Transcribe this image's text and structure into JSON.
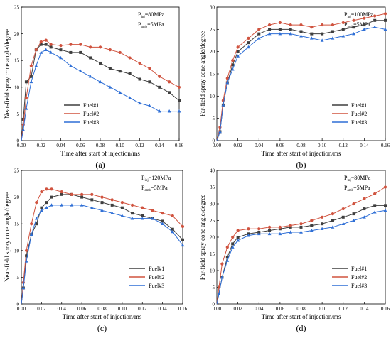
{
  "colors": {
    "fuel1": "#3f3f3f",
    "fuel2": "#d0533f",
    "fuel3": "#2f6fd6"
  },
  "chart_data": [
    {
      "type": "scatter",
      "panel_label": "(a)",
      "title": "",
      "xlabel": "Time after start of injection/ms",
      "ylabel": "Near-field spray cone angle/degree",
      "xlim": [
        0,
        0.16
      ],
      "ylim": [
        0,
        25
      ],
      "xticks": [
        "0.00",
        "0.02",
        "0.04",
        "0.06",
        "0.08",
        "0.10",
        "0.12",
        "0.14",
        "0.16"
      ],
      "yticks": [
        "0",
        "5",
        "10",
        "15",
        "20",
        "25"
      ],
      "conditions": [
        {
          "main": "P",
          "sub": "inj",
          "rest": "=80MPa"
        },
        {
          "main": "P",
          "sub": "amb",
          "rest": "=5MPa"
        }
      ],
      "legend": [
        "Fuel#1",
        "Fuel#2",
        "Fuel#3"
      ],
      "legend_position": "bottom-left",
      "series": [
        {
          "name": "Fuel#1",
          "marker": "square",
          "x": [
            0.002,
            0.005,
            0.01,
            0.015,
            0.02,
            0.025,
            0.03,
            0.04,
            0.05,
            0.06,
            0.07,
            0.08,
            0.09,
            0.1,
            0.11,
            0.12,
            0.13,
            0.14,
            0.15,
            0.16
          ],
          "y": [
            4,
            11,
            12,
            17,
            18,
            18,
            17.5,
            17,
            16.5,
            16.5,
            15.5,
            14.5,
            13.5,
            13,
            12.5,
            11.5,
            11,
            10,
            9,
            7.5
          ]
        },
        {
          "name": "Fuel#2",
          "marker": "circle",
          "x": [
            0.002,
            0.005,
            0.01,
            0.015,
            0.02,
            0.025,
            0.03,
            0.04,
            0.05,
            0.06,
            0.07,
            0.08,
            0.09,
            0.1,
            0.11,
            0.12,
            0.13,
            0.14,
            0.15,
            0.16
          ],
          "y": [
            3,
            8,
            14,
            17,
            18.5,
            18.8,
            18,
            17.8,
            18,
            18,
            17.5,
            17.5,
            17,
            16.5,
            15.5,
            14.5,
            13.5,
            12,
            11,
            10
          ]
        },
        {
          "name": "Fuel#3",
          "marker": "triangle",
          "x": [
            0.002,
            0.005,
            0.01,
            0.015,
            0.02,
            0.025,
            0.03,
            0.04,
            0.05,
            0.06,
            0.07,
            0.08,
            0.09,
            0.1,
            0.11,
            0.12,
            0.13,
            0.14,
            0.15,
            0.16
          ],
          "y": [
            2,
            6,
            11,
            14,
            16.5,
            17,
            16.5,
            15.5,
            14,
            13,
            12,
            11,
            10,
            9,
            8,
            7,
            6.5,
            5.5,
            5.5,
            5.5
          ]
        }
      ]
    },
    {
      "type": "scatter",
      "panel_label": "(b)",
      "title": "",
      "xlabel": "Time after start of injection/ms",
      "ylabel": "Far-field spray cone angle/degree",
      "xlim": [
        0,
        0.16
      ],
      "ylim": [
        0,
        30
      ],
      "xticks": [
        "0.00",
        "0.02",
        "0.04",
        "0.06",
        "0.08",
        "0.10",
        "0.12",
        "0.14",
        "0.16"
      ],
      "yticks": [
        "0",
        "5",
        "10",
        "15",
        "20",
        "25",
        "30"
      ],
      "conditions": [
        {
          "main": "P",
          "sub": "inj",
          "rest": "=100MPa"
        },
        {
          "main": "P",
          "sub": "amb",
          "rest": "=5MPa"
        }
      ],
      "legend": [
        "Fuel#1",
        "Fuel#2",
        "Fuel#3"
      ],
      "legend_position": "bottom-right",
      "series": [
        {
          "name": "Fuel#1",
          "marker": "square",
          "x": [
            0.003,
            0.006,
            0.01,
            0.015,
            0.02,
            0.03,
            0.04,
            0.05,
            0.06,
            0.07,
            0.08,
            0.09,
            0.1,
            0.11,
            0.12,
            0.13,
            0.14,
            0.15,
            0.16
          ],
          "y": [
            2,
            8,
            13,
            17,
            20,
            22,
            24,
            25,
            25,
            25,
            24.5,
            24,
            24,
            24.5,
            25,
            25.5,
            26,
            27,
            27
          ]
        },
        {
          "name": "Fuel#2",
          "marker": "circle",
          "x": [
            0.003,
            0.006,
            0.01,
            0.015,
            0.02,
            0.03,
            0.04,
            0.05,
            0.06,
            0.07,
            0.08,
            0.09,
            0.1,
            0.11,
            0.12,
            0.13,
            0.14,
            0.15,
            0.16
          ],
          "y": [
            3,
            9,
            14,
            18,
            21,
            23,
            25,
            26,
            26.5,
            26,
            26,
            25.5,
            26,
            26,
            26.5,
            27,
            27.5,
            28,
            28.5
          ]
        },
        {
          "name": "Fuel#3",
          "marker": "triangle",
          "x": [
            0.003,
            0.006,
            0.01,
            0.015,
            0.02,
            0.03,
            0.04,
            0.05,
            0.06,
            0.07,
            0.08,
            0.09,
            0.1,
            0.11,
            0.12,
            0.13,
            0.14,
            0.15,
            0.16
          ],
          "y": [
            2,
            8,
            13,
            16,
            19,
            21,
            23,
            24,
            24,
            24,
            23.5,
            23,
            22.5,
            23,
            23.5,
            24,
            25,
            25.5,
            25
          ]
        }
      ]
    },
    {
      "type": "scatter",
      "panel_label": "(c)",
      "title": "",
      "xlabel": "Time after start of injection/ms",
      "ylabel": "Near-field spray cone angle/degree",
      "xlim": [
        0,
        0.16
      ],
      "ylim": [
        0,
        25
      ],
      "xticks": [
        "0.00",
        "0.02",
        "0.04",
        "0.06",
        "0.08",
        "0.10",
        "0.12",
        "0.14",
        "0.16"
      ],
      "yticks": [
        "0",
        "5",
        "10",
        "15",
        "20",
        "25"
      ],
      "conditions": [
        {
          "main": "P",
          "sub": "inj",
          "rest": "=120MPa"
        },
        {
          "main": "P",
          "sub": "amb",
          "rest": "=5MPa"
        }
      ],
      "legend": [
        "Fuel#1",
        "Fuel#2",
        "Fuel#3"
      ],
      "legend_position": "bottom-right",
      "series": [
        {
          "name": "Fuel#1",
          "marker": "square",
          "x": [
            0.002,
            0.005,
            0.01,
            0.015,
            0.02,
            0.025,
            0.03,
            0.04,
            0.05,
            0.06,
            0.07,
            0.08,
            0.09,
            0.1,
            0.11,
            0.12,
            0.13,
            0.14,
            0.15,
            0.16
          ],
          "y": [
            3,
            9,
            13,
            15,
            18,
            19,
            20,
            20.5,
            20.5,
            20,
            19.5,
            19,
            18.5,
            18,
            17,
            16.5,
            16,
            15.5,
            14,
            12
          ]
        },
        {
          "name": "Fuel#2",
          "marker": "circle",
          "x": [
            0.002,
            0.005,
            0.01,
            0.015,
            0.02,
            0.025,
            0.03,
            0.04,
            0.05,
            0.06,
            0.07,
            0.08,
            0.09,
            0.1,
            0.11,
            0.12,
            0.13,
            0.14,
            0.15,
            0.16
          ],
          "y": [
            4,
            10,
            15,
            19,
            21,
            21.5,
            21.5,
            21,
            20.5,
            20.5,
            20.5,
            20,
            19.5,
            19,
            18.5,
            18,
            17.5,
            17,
            16.5,
            14.5
          ]
        },
        {
          "name": "Fuel#3",
          "marker": "triangle",
          "x": [
            0.002,
            0.005,
            0.01,
            0.015,
            0.02,
            0.025,
            0.03,
            0.04,
            0.05,
            0.06,
            0.07,
            0.08,
            0.09,
            0.1,
            0.11,
            0.12,
            0.13,
            0.14,
            0.15,
            0.16
          ],
          "y": [
            3,
            8,
            13,
            16,
            17.5,
            18,
            18.5,
            18.5,
            18.5,
            18.5,
            18,
            17.5,
            17,
            16.5,
            16,
            16,
            16,
            15,
            13.5,
            11
          ]
        }
      ]
    },
    {
      "type": "scatter",
      "panel_label": "(d)",
      "title": "",
      "xlabel": "Time after start of injection/ms",
      "ylabel": "Far-field spray cone angle/degree",
      "xlim": [
        0,
        0.16
      ],
      "ylim": [
        0,
        40
      ],
      "xticks": [
        "0.00",
        "0.02",
        "0.04",
        "0.06",
        "0.08",
        "0.10",
        "0.12",
        "0.14",
        "0.16"
      ],
      "yticks": [
        "0",
        "5",
        "10",
        "15",
        "20",
        "25",
        "30",
        "35",
        "40"
      ],
      "conditions": [
        {
          "main": "P",
          "sub": "inj",
          "rest": "=80MPa"
        },
        {
          "main": "P",
          "sub": "amb",
          "rest": "=5MPa"
        }
      ],
      "legend": [
        "Fuel#1",
        "Fuel#2",
        "Fuel#3"
      ],
      "legend_position": "bottom-right",
      "series": [
        {
          "name": "Fuel#1",
          "marker": "square",
          "x": [
            0.002,
            0.005,
            0.01,
            0.015,
            0.02,
            0.03,
            0.04,
            0.05,
            0.06,
            0.07,
            0.08,
            0.09,
            0.1,
            0.11,
            0.12,
            0.13,
            0.14,
            0.15,
            0.16
          ],
          "y": [
            3,
            8,
            14,
            18,
            20,
            21,
            21.5,
            22,
            22.5,
            23,
            23,
            23.5,
            24,
            25,
            26,
            27,
            28.5,
            29.5,
            29.5
          ]
        },
        {
          "name": "Fuel#2",
          "marker": "circle",
          "x": [
            0.002,
            0.005,
            0.01,
            0.015,
            0.02,
            0.03,
            0.04,
            0.05,
            0.06,
            0.07,
            0.08,
            0.09,
            0.1,
            0.11,
            0.12,
            0.13,
            0.14,
            0.15,
            0.16
          ],
          "y": [
            5,
            12,
            17,
            20,
            22,
            22.5,
            22.5,
            23,
            23,
            23.5,
            24,
            25,
            26,
            27,
            28.5,
            30,
            31.5,
            33,
            35
          ]
        },
        {
          "name": "Fuel#3",
          "marker": "triangle",
          "x": [
            0.002,
            0.005,
            0.01,
            0.015,
            0.02,
            0.03,
            0.04,
            0.05,
            0.06,
            0.07,
            0.08,
            0.09,
            0.1,
            0.11,
            0.12,
            0.13,
            0.14,
            0.15,
            0.16
          ],
          "y": [
            3,
            8,
            13,
            17,
            19,
            20.5,
            21,
            21,
            21,
            21.5,
            21.5,
            22,
            22.5,
            23,
            24,
            25,
            26,
            27.5,
            28
          ]
        }
      ]
    }
  ]
}
